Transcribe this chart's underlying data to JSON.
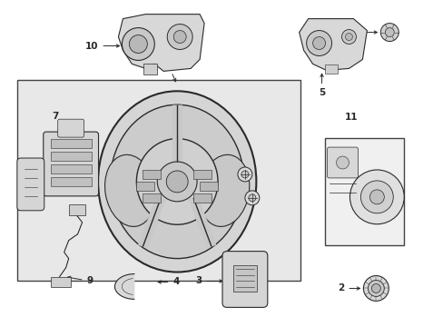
{
  "bg_color": "#ffffff",
  "main_box_bg": "#e8e8e8",
  "line_color": "#2a2a2a",
  "box_outline": "#444444",
  "fig_w": 4.89,
  "fig_h": 3.6,
  "dpi": 100
}
